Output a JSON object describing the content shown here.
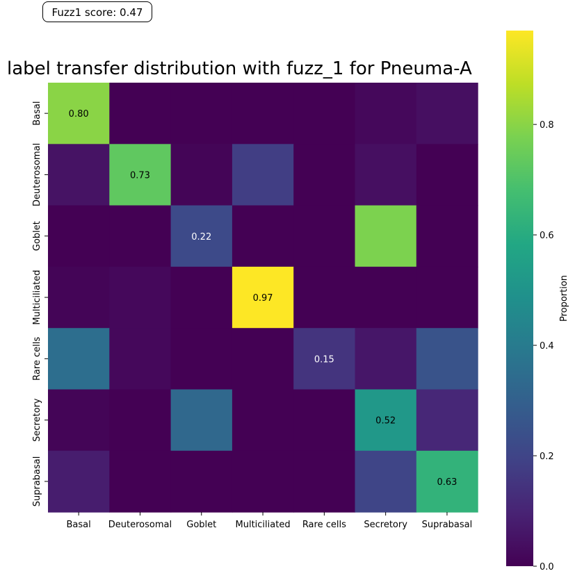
{
  "score_label": "Fuzz1 score: 0.47",
  "chart_data": {
    "type": "heatmap",
    "title": "label transfer distribution with fuzz_1 for Pneuma-A",
    "xlabel": "",
    "ylabel": "",
    "x_categories": [
      "Basal",
      "Deuterosomal",
      "Goblet",
      "Multiciliated",
      "Rare cells",
      "Secretory",
      "Suprabasal"
    ],
    "y_categories": [
      "Basal",
      "Deuterosomal",
      "Goblet",
      "Multiciliated",
      "Rare cells",
      "Secretory",
      "Suprabasal"
    ],
    "values": [
      [
        0.8,
        0.0,
        0.0,
        0.0,
        0.0,
        0.02,
        0.04
      ],
      [
        0.05,
        0.73,
        0.01,
        0.18,
        0.0,
        0.04,
        0.0
      ],
      [
        0.0,
        0.0,
        0.22,
        0.0,
        0.0,
        0.78,
        0.0
      ],
      [
        0.01,
        0.02,
        0.0,
        0.97,
        0.0,
        0.0,
        0.0
      ],
      [
        0.35,
        0.02,
        0.0,
        0.0,
        0.15,
        0.06,
        0.25
      ],
      [
        0.01,
        0.0,
        0.33,
        0.0,
        0.0,
        0.52,
        0.11
      ],
      [
        0.08,
        0.0,
        0.0,
        0.0,
        0.0,
        0.2,
        0.63
      ]
    ],
    "annotations": [
      {
        "row": 0,
        "col": 0,
        "text": "0.80"
      },
      {
        "row": 1,
        "col": 1,
        "text": "0.73"
      },
      {
        "row": 2,
        "col": 2,
        "text": "0.22"
      },
      {
        "row": 3,
        "col": 3,
        "text": "0.97"
      },
      {
        "row": 4,
        "col": 4,
        "text": "0.15"
      },
      {
        "row": 5,
        "col": 5,
        "text": "0.52"
      },
      {
        "row": 6,
        "col": 6,
        "text": "0.63"
      }
    ],
    "colorbar": {
      "label": "Proportion",
      "range": [
        0.0,
        0.97
      ],
      "ticks": [
        "0.0",
        "0.2",
        "0.4",
        "0.6",
        "0.8"
      ],
      "colormap": "viridis"
    }
  }
}
